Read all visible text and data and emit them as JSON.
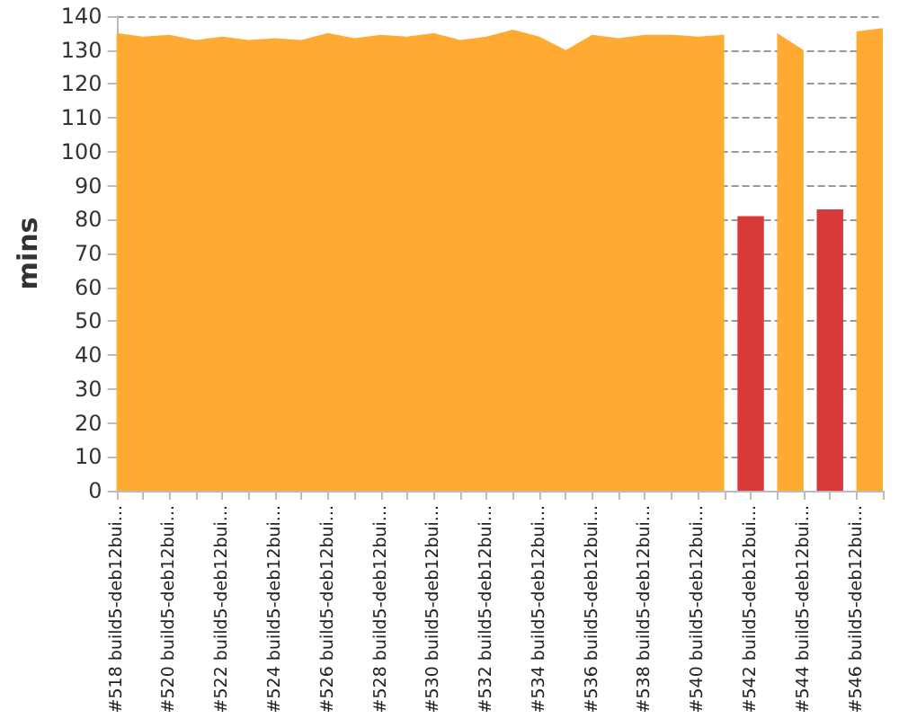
{
  "chart_data": {
    "type": "area",
    "ylabel": "mins",
    "categories": [
      "#518 build5-deb12bui...",
      null,
      "#520 build5-deb12bui...",
      null,
      "#522 build5-deb12bui...",
      null,
      "#524 build5-deb12bui...",
      null,
      "#526 build5-deb12bui...",
      null,
      "#528 build5-deb12bui...",
      null,
      "#530 build5-deb12bui...",
      null,
      "#532 build5-deb12bui...",
      null,
      "#534 build5-deb12bui...",
      null,
      "#536 build5-deb12bui...",
      null,
      "#538 build5-deb12bui...",
      null,
      "#540 build5-deb12bui...",
      null,
      "#542 build5-deb12bui...",
      null,
      "#544 build5-deb12bui...",
      null,
      "#546 build5-deb12bui...",
      null
    ],
    "series": [
      {
        "color": "#ffab33",
        "values": [
          135,
          134,
          134.5,
          133,
          134,
          133,
          133.5,
          133,
          135,
          133.5,
          134.5,
          134,
          135,
          133,
          134,
          136,
          134,
          130,
          134.5,
          133.5,
          134.5,
          134.5,
          134,
          134.5,
          null,
          135,
          130,
          null,
          135.5,
          136.5
        ]
      },
      {
        "type": "bar",
        "color": "#d73838",
        "values": [
          null,
          null,
          null,
          null,
          null,
          null,
          null,
          null,
          null,
          null,
          null,
          null,
          null,
          null,
          null,
          null,
          null,
          null,
          null,
          null,
          null,
          null,
          null,
          null,
          81,
          null,
          null,
          83,
          null,
          null
        ]
      }
    ],
    "ylim": [
      0,
      140
    ],
    "yticks": [
      0,
      10,
      20,
      30,
      40,
      50,
      60,
      70,
      80,
      90,
      100,
      110,
      120,
      130,
      140
    ],
    "grid": "y"
  }
}
